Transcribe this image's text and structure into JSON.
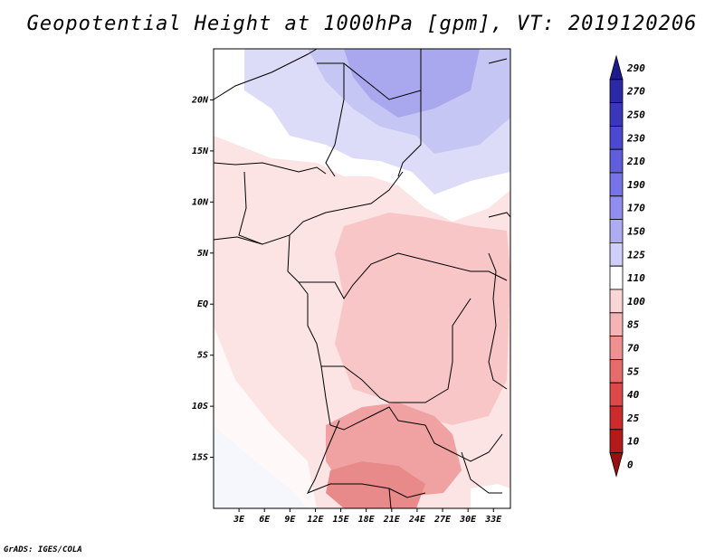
{
  "title": "Geopotential Height at 1000hPa [gpm], VT: 2019120206",
  "credit": "GrADS: IGES/COLA",
  "map": {
    "lat_labels": [
      "20N",
      "15N",
      "10N",
      "5N",
      "EQ",
      "5S",
      "10S",
      "15S"
    ],
    "lat_values": [
      20,
      15,
      10,
      5,
      0,
      -5,
      -10,
      -15
    ],
    "lon_labels": [
      "3E",
      "6E",
      "9E",
      "12E",
      "15E",
      "18E",
      "21E",
      "24E",
      "27E",
      "30E",
      "33E"
    ],
    "lon_values": [
      3,
      6,
      9,
      12,
      15,
      18,
      21,
      24,
      27,
      30,
      33
    ],
    "lon_range": [
      0,
      35
    ],
    "lat_range": [
      -20,
      25
    ]
  },
  "colorbar": {
    "levels": [
      "290",
      "270",
      "250",
      "230",
      "210",
      "190",
      "170",
      "150",
      "125",
      "110",
      "100",
      "85",
      "70",
      "55",
      "40",
      "25",
      "10",
      "0"
    ],
    "colors": [
      "#1e1b8c",
      "#2b29a6",
      "#3a37bd",
      "#4c49d0",
      "#605edd",
      "#7674e6",
      "#908eee",
      "#aeadf4",
      "#cfcff9",
      "#ffffff",
      "#fbd6d6",
      "#f5b3b3",
      "#ee9090",
      "#e66b6b",
      "#dd4848",
      "#cd2b2b",
      "#b51a1a",
      "#991010"
    ]
  }
}
